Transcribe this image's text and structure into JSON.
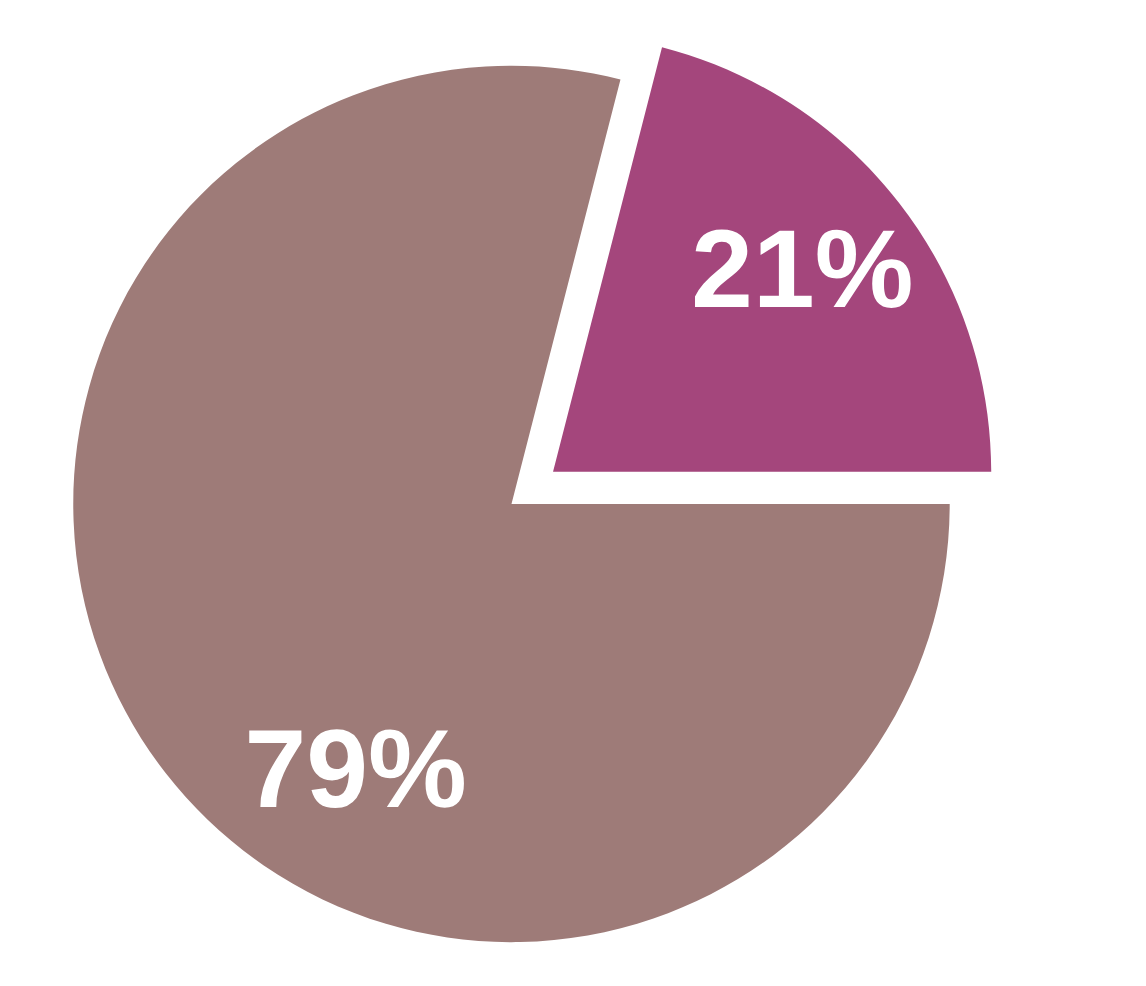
{
  "chart_data": {
    "type": "pie",
    "categories": [
      null,
      null
    ],
    "values": [
      21,
      79
    ],
    "colors": [
      "#a4467c",
      "#9e7b78"
    ],
    "value_labels": [
      "21%",
      "79%"
    ]
  }
}
